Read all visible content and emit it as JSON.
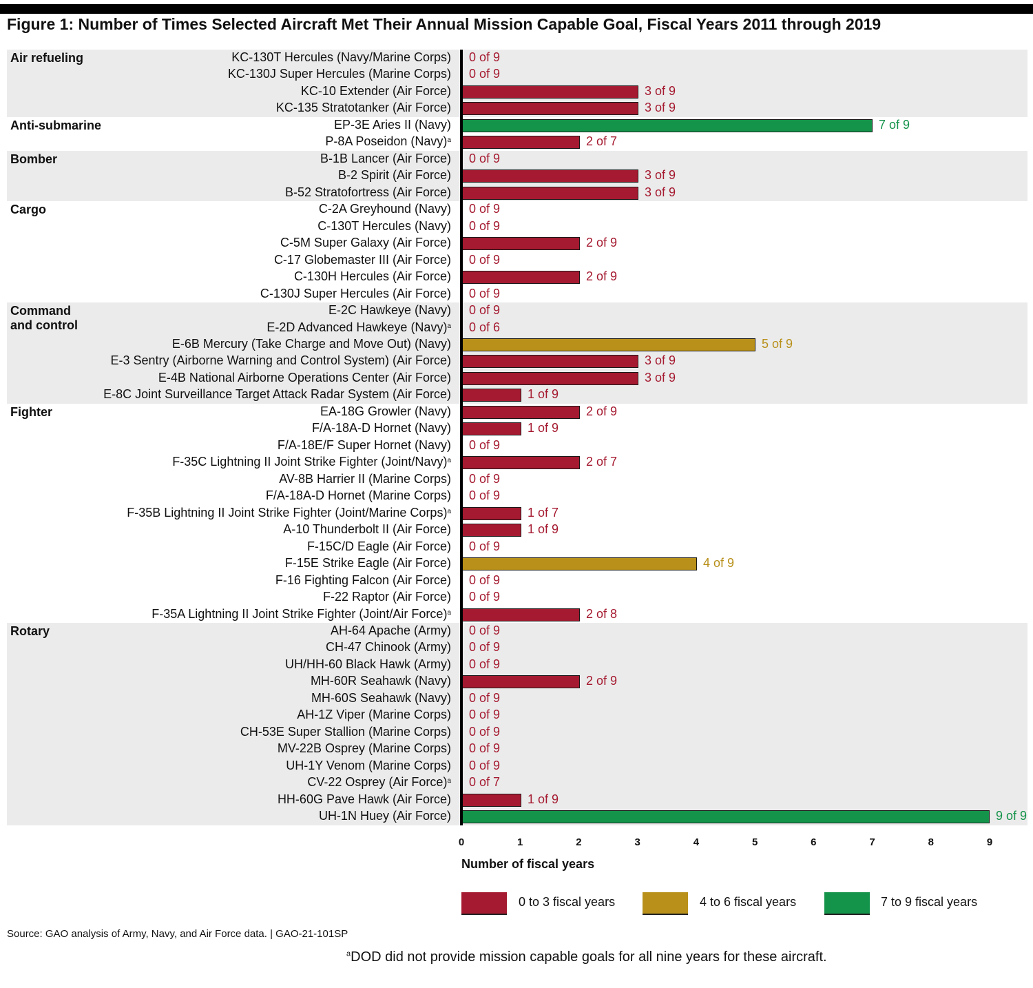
{
  "title": "Figure 1: Number of Times Selected Aircraft Met Their Annual Mission Capable Goal, Fiscal Years 2011 through 2019",
  "colors": {
    "low": "#a51a30",
    "mid": "#b8901a",
    "high": "#14934a",
    "group_bg": "#ebebeb"
  },
  "chart_data": {
    "type": "bar",
    "orientation": "horizontal",
    "title": "Figure 1: Number of Times Selected Aircraft Met Their Annual Mission Capable Goal, Fiscal Years 2011 through 2019",
    "xlabel": "Number of fiscal years",
    "ylabel": "",
    "xlim": [
      0,
      9
    ],
    "xticks": [
      "0",
      "1",
      "2",
      "3",
      "4",
      "5",
      "6",
      "7",
      "8",
      "9"
    ],
    "grid": false,
    "legend": [
      {
        "label": "0 to 3 fiscal years",
        "color": "#a51a30"
      },
      {
        "label": "4 to 6 fiscal years",
        "color": "#b8901a"
      },
      {
        "label": "7 to 9 fiscal years",
        "color": "#14934a"
      }
    ],
    "legend_position": "bottom",
    "groups": [
      {
        "name": "Air refueling",
        "shaded": true,
        "items": [
          {
            "label": "KC-130T Hercules (Navy/Marine Corps)",
            "value": 0,
            "total": 9,
            "text": "0 of 9",
            "note": ""
          },
          {
            "label": "KC-130J Super Hercules (Marine Corps)",
            "value": 0,
            "total": 9,
            "text": "0 of 9",
            "note": ""
          },
          {
            "label": "KC-10 Extender (Air Force)",
            "value": 3,
            "total": 9,
            "text": "3 of 9",
            "note": ""
          },
          {
            "label": "KC-135 Stratotanker (Air Force)",
            "value": 3,
            "total": 9,
            "text": "3 of 9",
            "note": ""
          }
        ]
      },
      {
        "name": "Anti-submarine",
        "shaded": false,
        "items": [
          {
            "label": "EP-3E Aries II (Navy)",
            "value": 7,
            "total": 9,
            "text": "7 of 9",
            "note": ""
          },
          {
            "label": "P-8A Poseidon (Navy)",
            "value": 2,
            "total": 7,
            "text": "2 of 7",
            "note": "a"
          }
        ]
      },
      {
        "name": "Bomber",
        "shaded": true,
        "items": [
          {
            "label": "B-1B Lancer (Air Force)",
            "value": 0,
            "total": 9,
            "text": "0 of 9",
            "note": ""
          },
          {
            "label": "B-2 Spirit (Air Force)",
            "value": 3,
            "total": 9,
            "text": "3 of 9",
            "note": ""
          },
          {
            "label": "B-52 Stratofortress (Air Force)",
            "value": 3,
            "total": 9,
            "text": "3 of 9",
            "note": ""
          }
        ]
      },
      {
        "name": "Cargo",
        "shaded": false,
        "items": [
          {
            "label": "C-2A Greyhound (Navy)",
            "value": 0,
            "total": 9,
            "text": "0 of 9",
            "note": ""
          },
          {
            "label": "C-130T Hercules (Navy)",
            "value": 0,
            "total": 9,
            "text": "0 of 9",
            "note": ""
          },
          {
            "label": "C-5M Super Galaxy (Air Force)",
            "value": 2,
            "total": 9,
            "text": "2 of 9",
            "note": ""
          },
          {
            "label": "C-17 Globemaster III (Air Force)",
            "value": 0,
            "total": 9,
            "text": "0 of 9",
            "note": ""
          },
          {
            "label": "C-130H Hercules (Air Force)",
            "value": 2,
            "total": 9,
            "text": "2 of 9",
            "note": ""
          },
          {
            "label": "C-130J Super Hercules (Air Force)",
            "value": 0,
            "total": 9,
            "text": "0 of 9",
            "note": ""
          }
        ]
      },
      {
        "name": "Command and control",
        "name_line1": "Command",
        "name_line2": "and control",
        "shaded": true,
        "items": [
          {
            "label": "E-2C Hawkeye (Navy)",
            "value": 0,
            "total": 9,
            "text": "0 of 9",
            "note": ""
          },
          {
            "label": "E-2D Advanced Hawkeye (Navy)",
            "value": 0,
            "total": 6,
            "text": "0 of 6",
            "note": "a"
          },
          {
            "label": "E-6B Mercury (Take Charge and Move Out) (Navy)",
            "value": 5,
            "total": 9,
            "text": "5 of 9",
            "note": ""
          },
          {
            "label": "E-3 Sentry (Airborne Warning and Control System) (Air Force)",
            "value": 3,
            "total": 9,
            "text": "3 of 9",
            "note": ""
          },
          {
            "label": "E-4B National Airborne Operations Center (Air Force)",
            "value": 3,
            "total": 9,
            "text": "3 of 9",
            "note": ""
          },
          {
            "label": "E-8C Joint Surveillance Target Attack Radar System (Air Force)",
            "value": 1,
            "total": 9,
            "text": "1 of 9",
            "note": ""
          }
        ]
      },
      {
        "name": "Fighter",
        "shaded": false,
        "items": [
          {
            "label": "EA-18G Growler (Navy)",
            "value": 2,
            "total": 9,
            "text": "2 of 9",
            "note": ""
          },
          {
            "label": "F/A-18A-D Hornet (Navy)",
            "value": 1,
            "total": 9,
            "text": "1 of 9",
            "note": ""
          },
          {
            "label": "F/A-18E/F Super Hornet (Navy)",
            "value": 0,
            "total": 9,
            "text": "0 of 9",
            "note": ""
          },
          {
            "label": "F-35C Lightning II Joint Strike Fighter (Joint/Navy)",
            "value": 2,
            "total": 7,
            "text": "2 of 7",
            "note": "a"
          },
          {
            "label": "AV-8B Harrier II (Marine Corps)",
            "value": 0,
            "total": 9,
            "text": "0 of 9",
            "note": ""
          },
          {
            "label": "F/A-18A-D Hornet (Marine Corps)",
            "value": 0,
            "total": 9,
            "text": "0 of 9",
            "note": ""
          },
          {
            "label": "F-35B Lightning II Joint Strike Fighter (Joint/Marine Corps)",
            "value": 1,
            "total": 7,
            "text": "1 of 7",
            "note": "a"
          },
          {
            "label": "A-10 Thunderbolt II (Air Force)",
            "value": 1,
            "total": 9,
            "text": "1 of 9",
            "note": ""
          },
          {
            "label": "F-15C/D Eagle (Air Force)",
            "value": 0,
            "total": 9,
            "text": "0 of 9",
            "note": ""
          },
          {
            "label": "F-15E Strike Eagle (Air Force)",
            "value": 4,
            "total": 9,
            "text": "4 of 9",
            "note": ""
          },
          {
            "label": "F-16 Fighting Falcon (Air Force)",
            "value": 0,
            "total": 9,
            "text": "0 of 9",
            "note": ""
          },
          {
            "label": "F-22 Raptor (Air Force)",
            "value": 0,
            "total": 9,
            "text": "0 of 9",
            "note": ""
          },
          {
            "label": "F-35A Lightning II Joint Strike Fighter (Joint/Air Force)",
            "value": 2,
            "total": 8,
            "text": "2 of 8",
            "note": "a"
          }
        ]
      },
      {
        "name": "Rotary",
        "shaded": true,
        "items": [
          {
            "label": "AH-64 Apache (Army)",
            "value": 0,
            "total": 9,
            "text": "0 of 9",
            "note": ""
          },
          {
            "label": "CH-47 Chinook (Army)",
            "value": 0,
            "total": 9,
            "text": "0 of 9",
            "note": ""
          },
          {
            "label": "UH/HH-60 Black Hawk (Army)",
            "value": 0,
            "total": 9,
            "text": "0 of 9",
            "note": ""
          },
          {
            "label": "MH-60R Seahawk (Navy)",
            "value": 2,
            "total": 9,
            "text": "2 of 9",
            "note": ""
          },
          {
            "label": "MH-60S Seahawk (Navy)",
            "value": 0,
            "total": 9,
            "text": "0 of 9",
            "note": ""
          },
          {
            "label": "AH-1Z Viper (Marine Corps)",
            "value": 0,
            "total": 9,
            "text": "0 of 9",
            "note": ""
          },
          {
            "label": "CH-53E Super Stallion (Marine Corps)",
            "value": 0,
            "total": 9,
            "text": "0 of 9",
            "note": ""
          },
          {
            "label": "MV-22B Osprey (Marine Corps)",
            "value": 0,
            "total": 9,
            "text": "0 of 9",
            "note": ""
          },
          {
            "label": "UH-1Y Venom (Marine Corps)",
            "value": 0,
            "total": 9,
            "text": "0 of 9",
            "note": ""
          },
          {
            "label": "CV-22 Osprey (Air Force)",
            "value": 0,
            "total": 7,
            "text": "0 of 7",
            "note": "a"
          },
          {
            "label": "HH-60G Pave Hawk (Air Force)",
            "value": 1,
            "total": 9,
            "text": "1 of 9",
            "note": ""
          },
          {
            "label": "UH-1N Huey (Air Force)",
            "value": 9,
            "total": 9,
            "text": "9 of 9",
            "note": ""
          }
        ]
      }
    ]
  },
  "source": "Source: GAO analysis of Army, Navy, and Air Force data.  |  GAO-21-101SP",
  "footnote_marker": "a",
  "footnote": "DOD did not provide mission capable goals for all nine years for these aircraft."
}
